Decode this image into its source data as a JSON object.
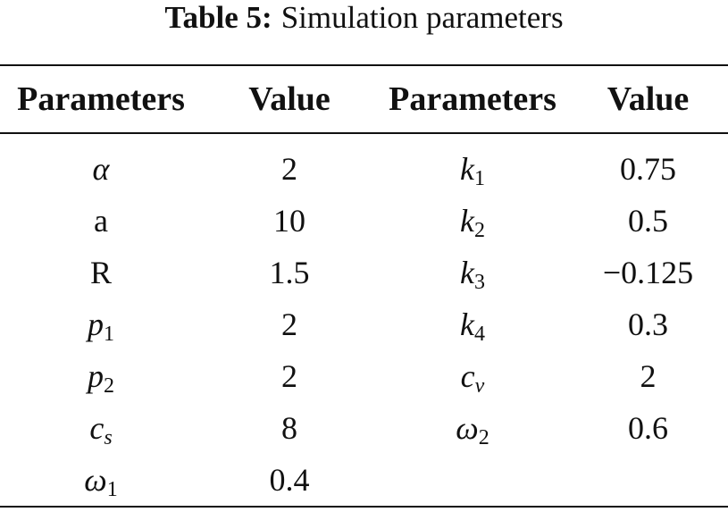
{
  "caption": {
    "label": "Table 5:",
    "text": "Simulation parameters"
  },
  "table": {
    "headers": [
      "Parameters",
      "Value",
      "Parameters",
      "Value"
    ],
    "rows": [
      [
        {
          "symbol": "α"
        },
        "2",
        {
          "symbol": "k",
          "sub": "1"
        },
        "0.75"
      ],
      [
        {
          "symbol": "a"
        },
        "10",
        {
          "symbol": "k",
          "sub": "2"
        },
        "0.5"
      ],
      [
        {
          "symbol": "R"
        },
        "1.5",
        {
          "symbol": "k",
          "sub": "3"
        },
        "−0.125"
      ],
      [
        {
          "symbol": "p",
          "sub": "1"
        },
        "2",
        {
          "symbol": "k",
          "sub": "4"
        },
        "0.3"
      ],
      [
        {
          "symbol": "p",
          "sub": "2"
        },
        "2",
        {
          "symbol": "c",
          "sub": "v"
        },
        "2"
      ],
      [
        {
          "symbol": "c",
          "sub": "s"
        },
        "8",
        {
          "symbol": "ω",
          "sub": "2"
        },
        "0.6"
      ],
      [
        {
          "symbol": "ω",
          "sub": "1"
        },
        "0.4"
      ]
    ]
  }
}
